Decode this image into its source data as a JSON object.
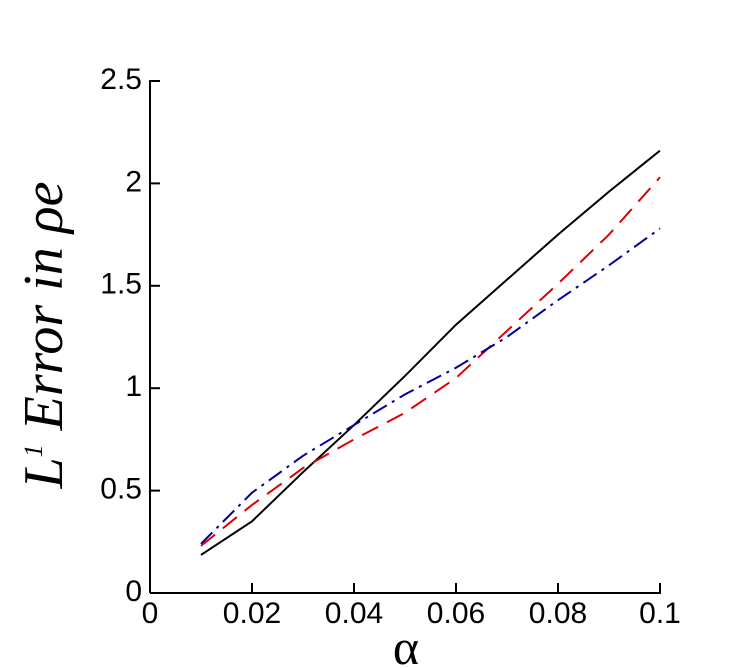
{
  "chart_data": {
    "type": "line",
    "x_label": "α",
    "y_label": {
      "base": "L",
      "sup": "1",
      "rest": " Error in ρe"
    },
    "x": [
      0.01,
      0.02,
      0.03,
      0.04,
      0.05,
      0.06,
      0.07,
      0.08,
      0.09,
      0.1
    ],
    "series": [
      {
        "color": "#000000",
        "dash": "solid",
        "values": [
          0.186,
          0.35,
          0.59,
          0.82,
          1.06,
          1.31,
          1.53,
          1.75,
          1.96,
          2.16
        ]
      },
      {
        "color": "#dd0000",
        "dash": "dashed",
        "values": [
          0.23,
          0.43,
          0.61,
          0.75,
          0.88,
          1.05,
          1.28,
          1.51,
          1.75,
          2.03
        ]
      },
      {
        "color": "#00009c",
        "dash": "dashdot",
        "values": [
          0.24,
          0.49,
          0.67,
          0.82,
          0.97,
          1.1,
          1.25,
          1.43,
          1.6,
          1.78
        ]
      }
    ],
    "xlim": [
      0,
      0.1
    ],
    "xticks": [
      0,
      0.02,
      0.04,
      0.06,
      0.08,
      0.1
    ],
    "ylim": [
      0,
      2.5
    ],
    "yticks": [
      0,
      0.5,
      1,
      1.5,
      2,
      2.5
    ]
  }
}
